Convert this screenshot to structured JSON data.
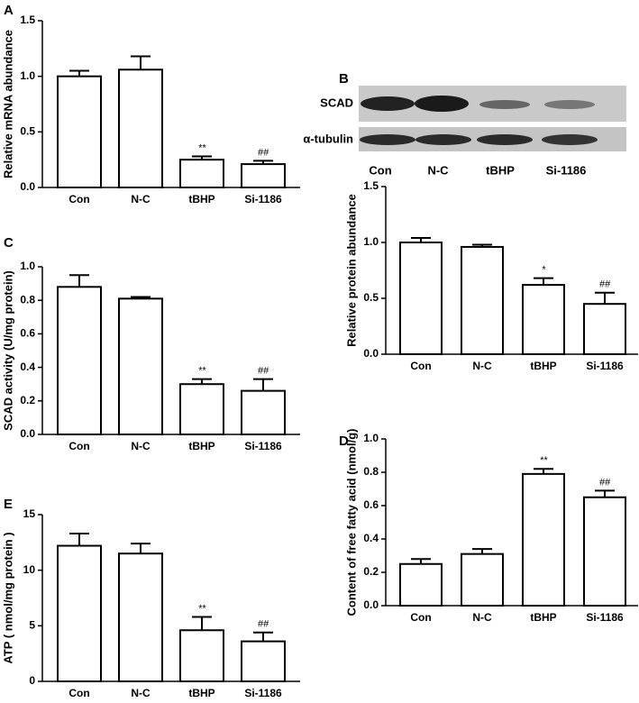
{
  "chart_data": [
    {
      "panel": "A",
      "type": "bar",
      "ylabel": "Relative mRNA abundance",
      "categories": [
        "Con",
        "N-C",
        "tBHP",
        "Si-1186"
      ],
      "values": [
        1.0,
        1.06,
        0.25,
        0.21
      ],
      "errors": [
        0.05,
        0.12,
        0.03,
        0.03
      ],
      "annotations": [
        null,
        null,
        "**",
        "##"
      ],
      "ylim": [
        0,
        1.5
      ],
      "yticks": [
        {
          "value": 0,
          "label": "0.0"
        },
        0.5,
        {
          "value": 1,
          "label": "1.0"
        },
        1.5
      ],
      "color": "#ffffff"
    },
    {
      "panel": "B",
      "type": "bar",
      "ylabel": "Relative protein abundance",
      "blot_labels": [
        "SCAD",
        "α-tubulin"
      ],
      "categories": [
        "Con",
        "N-C",
        "tBHP",
        "Si-1186"
      ],
      "values": [
        1.0,
        0.96,
        0.62,
        0.45
      ],
      "errors": [
        0.04,
        0.02,
        0.06,
        0.1
      ],
      "annotations": [
        null,
        null,
        "*",
        "##"
      ],
      "ylim": [
        0,
        1.5
      ],
      "yticks": [
        {
          "value": 0,
          "label": "0.0"
        },
        0.5,
        {
          "value": 1,
          "label": "1.0"
        },
        1.5
      ],
      "color": "#ffffff"
    },
    {
      "panel": "C",
      "type": "bar",
      "ylabel": "SCAD activity (U/mg protein)",
      "categories": [
        "Con",
        "N-C",
        "tBHP",
        "Si-1186"
      ],
      "values": [
        0.88,
        0.81,
        0.3,
        0.26
      ],
      "errors": [
        0.07,
        0.01,
        0.03,
        0.07
      ],
      "annotations": [
        null,
        null,
        "**",
        "##"
      ],
      "ylim": [
        0,
        1.0
      ],
      "yticks": [
        {
          "value": 0,
          "label": "0.0"
        },
        0.2,
        0.4,
        0.6,
        0.8,
        {
          "value": 1,
          "label": "1.0"
        }
      ],
      "color": "#ffffff"
    },
    {
      "panel": "D",
      "type": "bar",
      "ylabel": "Content of free fatty acid (nmol/g)",
      "categories": [
        "Con",
        "N-C",
        "tBHP",
        "Si-1186"
      ],
      "values": [
        0.25,
        0.31,
        0.79,
        0.65
      ],
      "errors": [
        0.03,
        0.03,
        0.03,
        0.04
      ],
      "annotations": [
        null,
        null,
        "**",
        "##"
      ],
      "ylim": [
        0,
        1.0
      ],
      "yticks": [
        {
          "value": 0,
          "label": "0.0"
        },
        0.2,
        0.4,
        0.6,
        0.8,
        {
          "value": 1,
          "label": "1.0"
        }
      ],
      "color": "#ffffff"
    },
    {
      "panel": "E",
      "type": "bar",
      "ylabel": "ATP ( nmol/mg protein )",
      "categories": [
        "Con",
        "N-C",
        "tBHP",
        "Si-1186"
      ],
      "values": [
        12.2,
        11.5,
        4.6,
        3.6
      ],
      "errors": [
        1.1,
        0.9,
        1.2,
        0.8
      ],
      "annotations": [
        null,
        null,
        "**",
        "##"
      ],
      "ylim": [
        0,
        15
      ],
      "yticks": [
        0,
        5,
        10,
        15
      ],
      "color": "#ffffff"
    }
  ]
}
